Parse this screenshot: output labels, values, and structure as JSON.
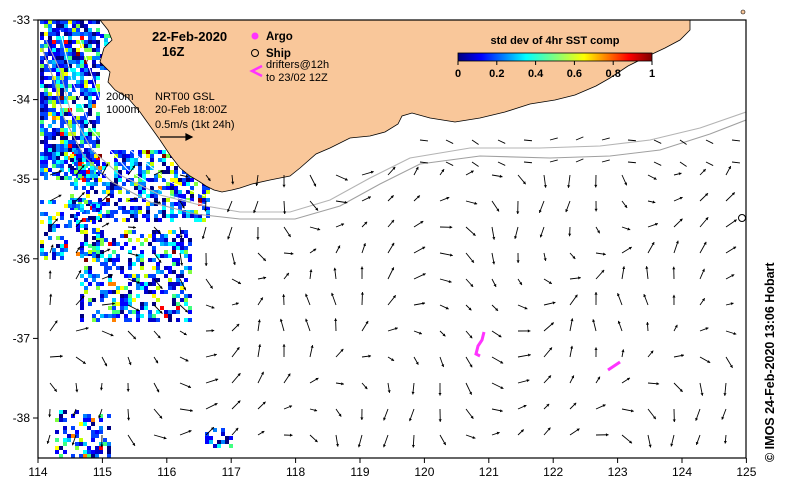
{
  "map": {
    "date": "22-Feb-2020",
    "time": "16Z",
    "x_ticks": [
      "114",
      "115",
      "116",
      "117",
      "118",
      "119",
      "120",
      "121",
      "122",
      "123",
      "124",
      "125"
    ],
    "y_ticks": [
      "-33",
      "-34",
      "-35",
      "-36",
      "-37",
      "-38"
    ],
    "land_color": "#f9c79a",
    "frame_color": "#000000"
  },
  "legend": {
    "argo_label": "Argo",
    "argo_color": "#ff33ff",
    "ship_label": "Ship",
    "drifters_line1": "drifters@12h",
    "drifters_line2": "to 23/02 12Z",
    "isobath_200": "200m",
    "isobath_1000": "1000m",
    "product": "NRT00 GSL",
    "product_time": "20-Feb 18:00Z",
    "scale_text": "0.5m/s (1kt 24h)"
  },
  "colorbar": {
    "title": "std dev of 4hr SST comp",
    "ticks": [
      "0",
      "0.2",
      "0.4",
      "0.6",
      "0.8",
      "1"
    ]
  },
  "credit": "©  IMOS 24-Feb-2020 13:06 Hobart"
}
